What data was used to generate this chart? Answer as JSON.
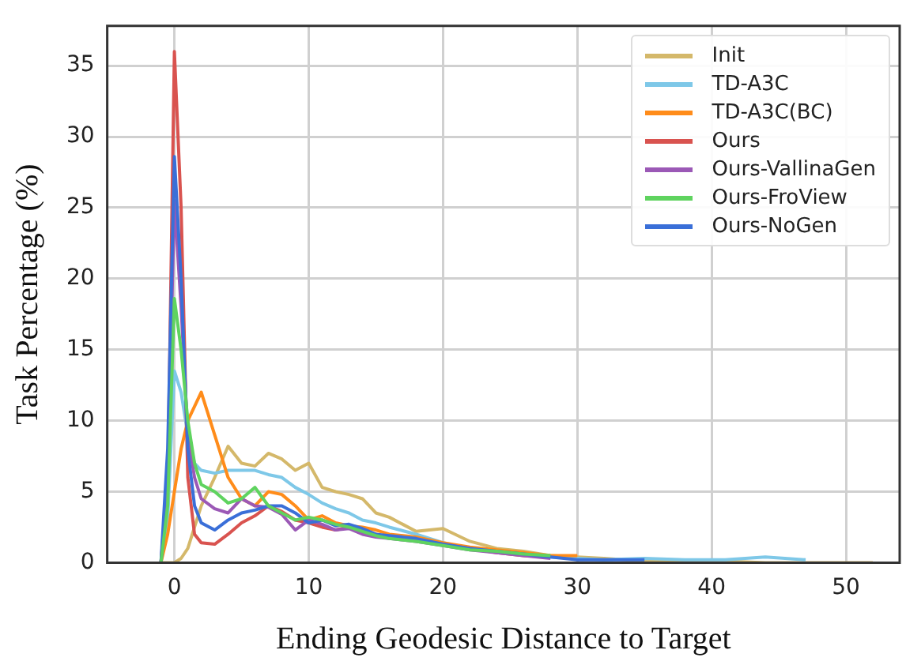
{
  "chart_data": {
    "type": "line",
    "xlabel": "Ending Geodesic Distance to Target",
    "ylabel": "Task Percentage (%)",
    "x": [
      -1,
      -0.5,
      0,
      0.5,
      1,
      1.5,
      2,
      3,
      4,
      5,
      6,
      7,
      8,
      9,
      10,
      11,
      12,
      13,
      14,
      15,
      16,
      18,
      20,
      22,
      24,
      26,
      28,
      30,
      32,
      35,
      38,
      41,
      44,
      47,
      50,
      52
    ],
    "series": [
      {
        "name": "Init",
        "color": "#d4b86a",
        "values": [
          0,
          0,
          0,
          0.3,
          1,
          2.5,
          4,
          6,
          8.2,
          7,
          6.8,
          7.7,
          7.3,
          6.5,
          7,
          5.3,
          5,
          4.8,
          4.5,
          3.5,
          3.2,
          2.2,
          2.4,
          1.5,
          1,
          0.8,
          0.5,
          0.4,
          0.3,
          0.1,
          0.1,
          0.1,
          0,
          0,
          0,
          0
        ]
      },
      {
        "name": "TD-A3C",
        "color": "#7ec8e8",
        "values": [
          0,
          3,
          13.5,
          12,
          9,
          7,
          6.5,
          6.3,
          6.5,
          6.5,
          6.5,
          6.2,
          6,
          5.3,
          4.8,
          4.2,
          3.8,
          3.5,
          3,
          2.8,
          2.5,
          2,
          1.4,
          1,
          0.8,
          0.6,
          0.4,
          0.3,
          0.2,
          0.3,
          0.2,
          0.2,
          0.4,
          0.2,
          null,
          null
        ]
      },
      {
        "name": "TD-A3C(BC)",
        "color": "#ff8c1a",
        "values": [
          0,
          2,
          5,
          8,
          10,
          11,
          12,
          9,
          6,
          4.5,
          4,
          5,
          4.8,
          4,
          3,
          3.3,
          2.8,
          2.6,
          2.5,
          2.3,
          2,
          1.8,
          1.4,
          1.1,
          0.9,
          0.7,
          0.5,
          0.5,
          null,
          null,
          null,
          null,
          null,
          null,
          null,
          null
        ]
      },
      {
        "name": "Ours",
        "color": "#d9534f",
        "values": [
          0,
          5,
          36,
          25,
          6,
          2,
          1.4,
          1.3,
          2,
          2.8,
          3.3,
          4,
          3.6,
          3,
          2.8,
          2.5,
          2.3,
          2.5,
          2.2,
          2,
          1.8,
          1.6,
          1.3,
          1,
          0.7,
          0.5,
          0.4,
          null,
          null,
          null,
          null,
          null,
          null,
          null,
          null,
          null
        ]
      },
      {
        "name": "Ours-VallinaGen",
        "color": "#9b59b6",
        "values": [
          0,
          6,
          25.5,
          18,
          9,
          6,
          4.5,
          3.8,
          3.5,
          4.5,
          4,
          3.9,
          3.4,
          2.3,
          3,
          2.7,
          2.3,
          2.4,
          2,
          1.8,
          1.7,
          1.5,
          1.2,
          0.9,
          0.7,
          0.5,
          0.3,
          null,
          null,
          null,
          null,
          null,
          null,
          null,
          null,
          null
        ]
      },
      {
        "name": "Ours-FroView",
        "color": "#5fd35f",
        "values": [
          0,
          4,
          18.6,
          15,
          10,
          7,
          5.5,
          5,
          4.2,
          4.5,
          5.3,
          4,
          3.5,
          3,
          3.2,
          3,
          2.7,
          2.5,
          2.2,
          1.9,
          1.7,
          1.5,
          1.2,
          0.9,
          0.8,
          0.6,
          0.5,
          null,
          null,
          null,
          null,
          null,
          null,
          null,
          null,
          null
        ]
      },
      {
        "name": "Ours-NoGen",
        "color": "#3a6fd8",
        "values": [
          0,
          8,
          28.6,
          20,
          8,
          4,
          2.8,
          2.3,
          3,
          3.5,
          3.7,
          4,
          4,
          3.5,
          2.8,
          3,
          2.6,
          2.7,
          2.4,
          2,
          1.9,
          1.7,
          1.3,
          1,
          0.8,
          0.6,
          0.4,
          0.2,
          0.2,
          0.2,
          null,
          null,
          null,
          null,
          null,
          null
        ]
      }
    ],
    "xlim": [
      -5,
      54
    ],
    "ylim": [
      0,
      37.8
    ],
    "xticks": [
      0,
      10,
      20,
      30,
      40,
      50
    ],
    "yticks": [
      0,
      5,
      10,
      15,
      20,
      25,
      30,
      35
    ],
    "grid": true,
    "legend": "top right",
    "marker": "none",
    "line_style": "solid"
  }
}
